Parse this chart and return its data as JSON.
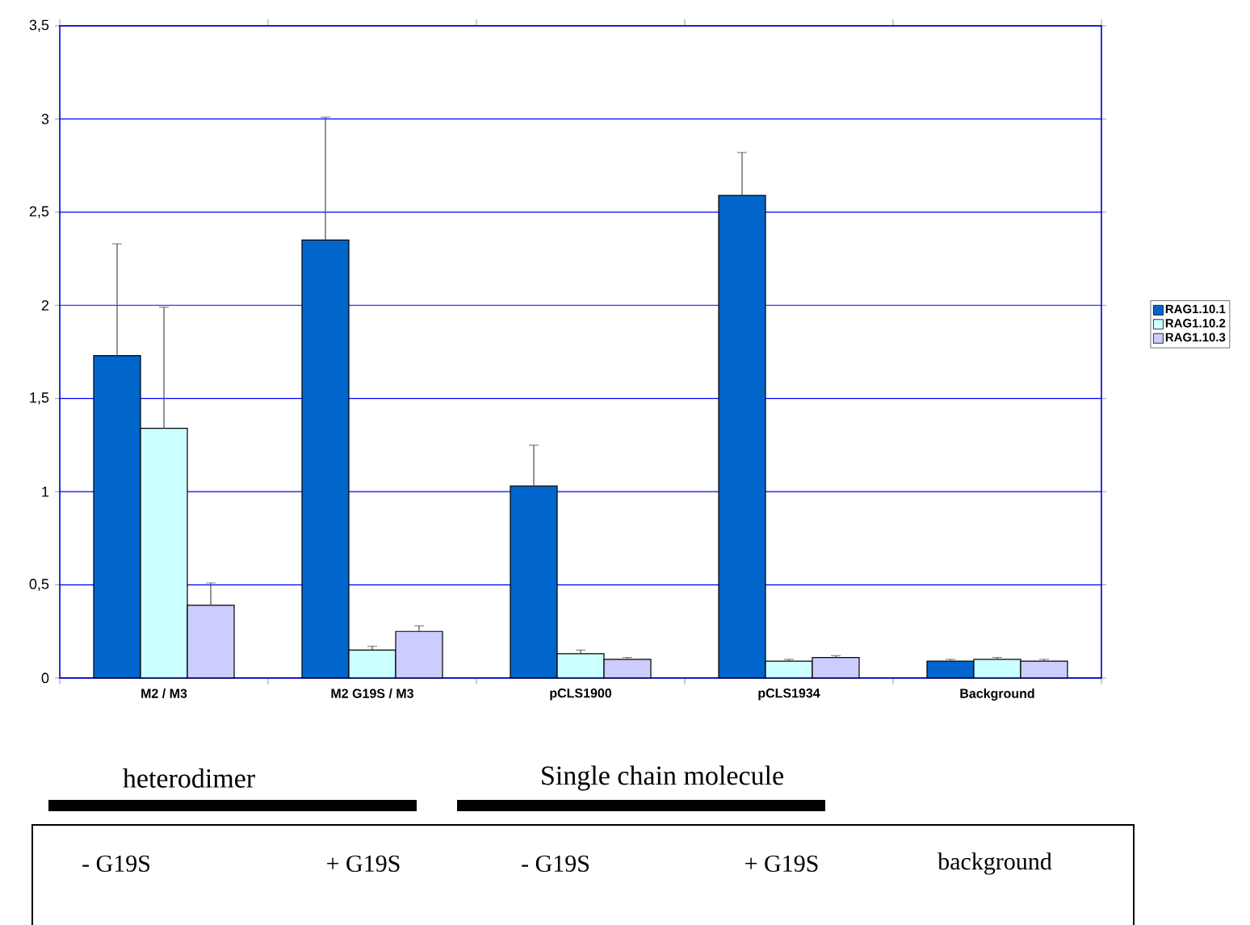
{
  "chart_data": {
    "type": "bar",
    "categories": [
      "M2 / M3",
      "M2 G19S / M3",
      "pCLS1900",
      "pCLS1934",
      "Background"
    ],
    "series": [
      {
        "name": "RAG1.10.1",
        "color": "#0066cc",
        "values": [
          1.73,
          2.35,
          1.03,
          2.59,
          0.09
        ],
        "errors": [
          0.6,
          0.66,
          0.22,
          0.23,
          0.01
        ]
      },
      {
        "name": "RAG1.10.2",
        "color": "#ccffff",
        "values": [
          1.34,
          0.15,
          0.13,
          0.09,
          0.1
        ],
        "errors": [
          0.65,
          0.02,
          0.02,
          0.01,
          0.01
        ]
      },
      {
        "name": "RAG1.10.3",
        "color": "#ccccff",
        "values": [
          0.39,
          0.25,
          0.1,
          0.11,
          0.09
        ],
        "errors": [
          0.12,
          0.03,
          0.01,
          0.01,
          0.01
        ]
      }
    ],
    "ylim": [
      0,
      3.5
    ],
    "yticks": [
      0,
      {
        "value": 0.5,
        "label": "0,5"
      },
      1,
      {
        "value": 1.5,
        "label": "1,5"
      },
      2,
      {
        "value": 2.5,
        "label": "2,5"
      },
      3,
      {
        "value": 3.5,
        "label": "3,5"
      }
    ],
    "grid": "y",
    "legend": "right",
    "annotations": [
      "heterodimer",
      "Single chain molecule",
      "- G19S",
      "+ G19S",
      "- G19S",
      "+ G19S",
      "background"
    ]
  }
}
